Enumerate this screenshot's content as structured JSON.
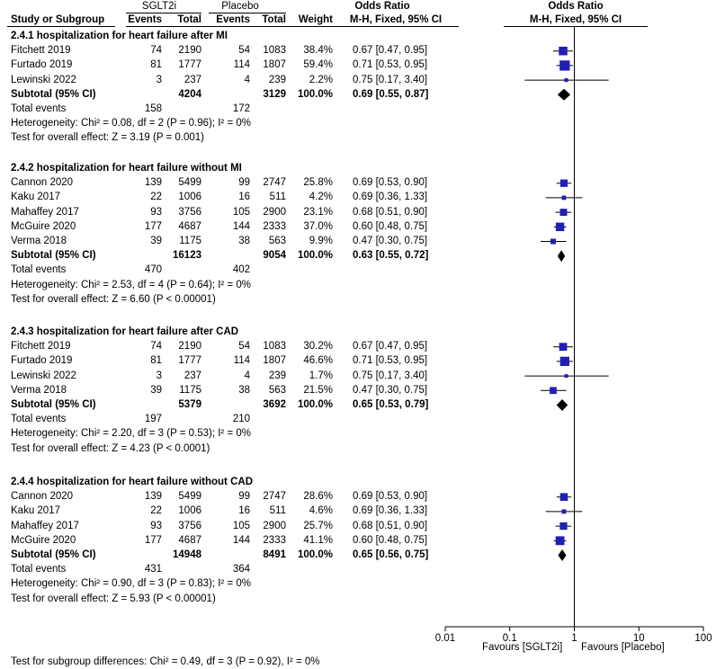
{
  "headers": {
    "group1": "SGLT2i",
    "group2": "Placebo",
    "odds_ratio_ci": "Odds Ratio",
    "odds_ratio_plot": "Odds Ratio",
    "study": "Study or Subgroup",
    "events1": "Events",
    "total1": "Total",
    "events2": "Events",
    "total2": "Total",
    "weight": "Weight",
    "method_ci": "M-H, Fixed, 95% CI",
    "method_plot": "M-H, Fixed, 95% CI"
  },
  "footer": "Test for subgroup differences: Chi² = 0.49, df = 3 (P = 0.92), I² = 0%",
  "colors": {
    "marker": "#1f1fb4",
    "line": "#000000"
  },
  "chart_data": {
    "type": "forest",
    "xscale": "log",
    "xlim": [
      0.01,
      100
    ],
    "reference_line": 1,
    "ticks": [
      0.01,
      0.1,
      1,
      10,
      100
    ],
    "tick_labels": [
      "0.01",
      "0.1",
      "1",
      "10",
      "100"
    ],
    "favours_left": "Favours [SGLT2i]",
    "favours_right": "Favours [Placebo]",
    "subgroups": [
      {
        "title": "2.4.1 hospitalization for heart failure after MI",
        "studies": [
          {
            "name": "Fitchett 2019",
            "e1": "74",
            "t1": "2190",
            "e2": "54",
            "t2": "1083",
            "weight": "38.4%",
            "ci_text": "0.67 [0.47, 0.95]",
            "or": 0.67,
            "lo": 0.47,
            "hi": 0.95,
            "w": 38.4
          },
          {
            "name": "Furtado 2019",
            "e1": "81",
            "t1": "1777",
            "e2": "114",
            "t2": "1807",
            "weight": "59.4%",
            "ci_text": "0.71 [0.53, 0.95]",
            "or": 0.71,
            "lo": 0.53,
            "hi": 0.95,
            "w": 59.4
          },
          {
            "name": "Lewinski 2022",
            "e1": "3",
            "t1": "237",
            "e2": "4",
            "t2": "239",
            "weight": "2.2%",
            "ci_text": "0.75 [0.17, 3.40]",
            "or": 0.75,
            "lo": 0.17,
            "hi": 3.4,
            "w": 2.2
          }
        ],
        "subtotal": {
          "label": "Subtotal (95% CI)",
          "t1": "4204",
          "t2": "3129",
          "weight": "100.0%",
          "ci_text": "0.69 [0.55, 0.87]",
          "or": 0.69,
          "lo": 0.55,
          "hi": 0.87
        },
        "total_events_label": "Total events",
        "total_events1": "158",
        "total_events2": "172",
        "heterogeneity": "Heterogeneity: Chi² = 0.08, df = 2 (P = 0.96); I² = 0%",
        "overall": "Test for overall effect: Z = 3.19 (P = 0.001)"
      },
      {
        "title": "2.4.2 hospitalization for heart failure without MI",
        "studies": [
          {
            "name": "Cannon 2020",
            "e1": "139",
            "t1": "5499",
            "e2": "99",
            "t2": "2747",
            "weight": "25.8%",
            "ci_text": "0.69 [0.53, 0.90]",
            "or": 0.69,
            "lo": 0.53,
            "hi": 0.9,
            "w": 25.8
          },
          {
            "name": "Kaku 2017",
            "e1": "22",
            "t1": "1006",
            "e2": "16",
            "t2": "511",
            "weight": "4.2%",
            "ci_text": "0.69 [0.36, 1.33]",
            "or": 0.69,
            "lo": 0.36,
            "hi": 1.33,
            "w": 4.2
          },
          {
            "name": "Mahaffey 2017",
            "e1": "93",
            "t1": "3756",
            "e2": "105",
            "t2": "2900",
            "weight": "23.1%",
            "ci_text": "0.68 [0.51, 0.90]",
            "or": 0.68,
            "lo": 0.51,
            "hi": 0.9,
            "w": 23.1
          },
          {
            "name": "McGuire 2020",
            "e1": "177",
            "t1": "4687",
            "e2": "144",
            "t2": "2333",
            "weight": "37.0%",
            "ci_text": "0.60 [0.48, 0.75]",
            "or": 0.6,
            "lo": 0.48,
            "hi": 0.75,
            "w": 37.0
          },
          {
            "name": "Verma 2018",
            "e1": "39",
            "t1": "1175",
            "e2": "38",
            "t2": "563",
            "weight": "9.9%",
            "ci_text": "0.47 [0.30, 0.75]",
            "or": 0.47,
            "lo": 0.3,
            "hi": 0.75,
            "w": 9.9
          }
        ],
        "subtotal": {
          "label": "Subtotal (95% CI)",
          "t1": "16123",
          "t2": "9054",
          "weight": "100.0%",
          "ci_text": "0.63 [0.55, 0.72]",
          "or": 0.63,
          "lo": 0.55,
          "hi": 0.72
        },
        "total_events_label": "Total events",
        "total_events1": "470",
        "total_events2": "402",
        "heterogeneity": "Heterogeneity: Chi² = 2.53, df = 4 (P = 0.64); I² = 0%",
        "overall": "Test for overall effect: Z = 6.60 (P < 0.00001)"
      },
      {
        "title": "2.4.3 hospitalization for heart failure after CAD",
        "studies": [
          {
            "name": "Fitchett 2019",
            "e1": "74",
            "t1": "2190",
            "e2": "54",
            "t2": "1083",
            "weight": "30.2%",
            "ci_text": "0.67 [0.47, 0.95]",
            "or": 0.67,
            "lo": 0.47,
            "hi": 0.95,
            "w": 30.2
          },
          {
            "name": "Furtado 2019",
            "e1": "81",
            "t1": "1777",
            "e2": "114",
            "t2": "1807",
            "weight": "46.6%",
            "ci_text": "0.71 [0.53, 0.95]",
            "or": 0.71,
            "lo": 0.53,
            "hi": 0.95,
            "w": 46.6
          },
          {
            "name": "Lewinski 2022",
            "e1": "3",
            "t1": "237",
            "e2": "4",
            "t2": "239",
            "weight": "1.7%",
            "ci_text": "0.75 [0.17, 3.40]",
            "or": 0.75,
            "lo": 0.17,
            "hi": 3.4,
            "w": 1.7
          },
          {
            "name": "Verma 2018",
            "e1": "39",
            "t1": "1175",
            "e2": "38",
            "t2": "563",
            "weight": "21.5%",
            "ci_text": "0.47 [0.30, 0.75]",
            "or": 0.47,
            "lo": 0.3,
            "hi": 0.75,
            "w": 21.5
          }
        ],
        "subtotal": {
          "label": "Subtotal (95% CI)",
          "t1": "5379",
          "t2": "3692",
          "weight": "100.0%",
          "ci_text": "0.65 [0.53, 0.79]",
          "or": 0.65,
          "lo": 0.53,
          "hi": 0.79
        },
        "total_events_label": "Total events",
        "total_events1": "197",
        "total_events2": "210",
        "heterogeneity": "Heterogeneity: Chi² = 2.20, df = 3 (P = 0.53); I² = 0%",
        "overall": "Test for overall effect: Z = 4.23 (P < 0.0001)"
      },
      {
        "title": "2.4.4 hospitalization for heart failure without CAD",
        "studies": [
          {
            "name": "Cannon 2020",
            "e1": "139",
            "t1": "5499",
            "e2": "99",
            "t2": "2747",
            "weight": "28.6%",
            "ci_text": "0.69 [0.53, 0.90]",
            "or": 0.69,
            "lo": 0.53,
            "hi": 0.9,
            "w": 28.6
          },
          {
            "name": "Kaku 2017",
            "e1": "22",
            "t1": "1006",
            "e2": "16",
            "t2": "511",
            "weight": "4.6%",
            "ci_text": "0.69 [0.36, 1.33]",
            "or": 0.69,
            "lo": 0.36,
            "hi": 1.33,
            "w": 4.6
          },
          {
            "name": "Mahaffey 2017",
            "e1": "93",
            "t1": "3756",
            "e2": "105",
            "t2": "2900",
            "weight": "25.7%",
            "ci_text": "0.68 [0.51, 0.90]",
            "or": 0.68,
            "lo": 0.51,
            "hi": 0.9,
            "w": 25.7
          },
          {
            "name": "McGuire 2020",
            "e1": "177",
            "t1": "4687",
            "e2": "144",
            "t2": "2333",
            "weight": "41.1%",
            "ci_text": "0.60 [0.48, 0.75]",
            "or": 0.6,
            "lo": 0.48,
            "hi": 0.75,
            "w": 41.1
          }
        ],
        "subtotal": {
          "label": "Subtotal (95% CI)",
          "t1": "14948",
          "t2": "8491",
          "weight": "100.0%",
          "ci_text": "0.65 [0.56, 0.75]",
          "or": 0.65,
          "lo": 0.56,
          "hi": 0.75
        },
        "total_events_label": "Total events",
        "total_events1": "431",
        "total_events2": "364",
        "heterogeneity": "Heterogeneity: Chi² = 0.90, df = 3 (P = 0.83); I² = 0%",
        "overall": "Test for overall effect: Z = 5.93 (P < 0.00001)"
      }
    ]
  }
}
